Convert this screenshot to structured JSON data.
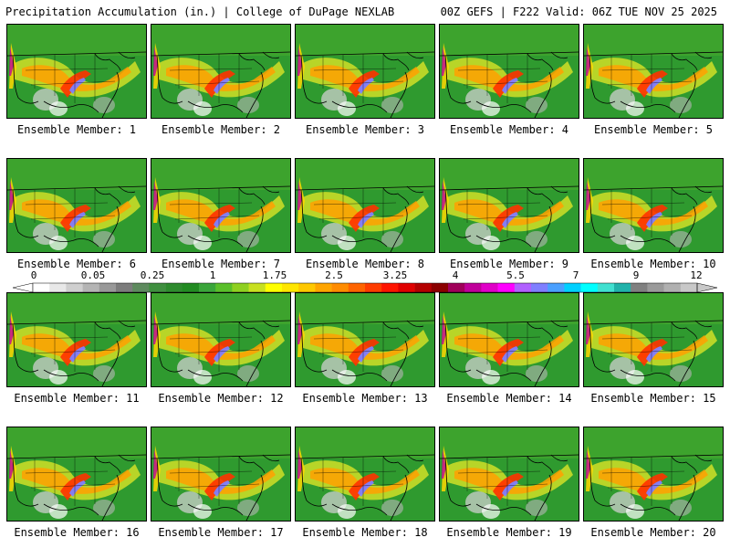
{
  "header": {
    "left": "Precipitation Accumulation (in.) | College of DuPage NEXLAB",
    "right": "00Z GEFS | F222 Valid: 06Z TUE NOV 25 2025"
  },
  "panels": [
    {
      "label": "Ensemble Member: 1"
    },
    {
      "label": "Ensemble Member: 2"
    },
    {
      "label": "Ensemble Member: 3"
    },
    {
      "label": "Ensemble Member: 4"
    },
    {
      "label": "Ensemble Member: 5"
    },
    {
      "label": "Ensemble Member: 6"
    },
    {
      "label": "Ensemble Member: 7"
    },
    {
      "label": "Ensemble Member: 8"
    },
    {
      "label": "Ensemble Member: 9"
    },
    {
      "label": "Ensemble Member: 10"
    },
    {
      "label": "Ensemble Member: 11"
    },
    {
      "label": "Ensemble Member: 12"
    },
    {
      "label": "Ensemble Member: 13"
    },
    {
      "label": "Ensemble Member: 14"
    },
    {
      "label": "Ensemble Member: 15"
    },
    {
      "label": "Ensemble Member: 16"
    },
    {
      "label": "Ensemble Member: 17"
    },
    {
      "label": "Ensemble Member: 18"
    },
    {
      "label": "Ensemble Member: 19"
    },
    {
      "label": "Ensemble Member: 20"
    }
  ],
  "colorbar": {
    "labels": [
      "0",
      "0.05",
      "0.25",
      "1",
      "1.75",
      "2.5",
      "3.25",
      "4",
      "5.5",
      "7",
      "9",
      "12"
    ],
    "colors": [
      "#ffffff",
      "#e8e8e8",
      "#cfcfcf",
      "#b4b4b4",
      "#989898",
      "#7c7c7c",
      "#5e8a5e",
      "#3f8f3f",
      "#2e8b2e",
      "#228b22",
      "#3aa53a",
      "#5abf2a",
      "#8fd020",
      "#c8e020",
      "#ffff00",
      "#ffe600",
      "#ffc800",
      "#ffa500",
      "#ff8c00",
      "#ff6400",
      "#ff3c00",
      "#ff1400",
      "#e00000",
      "#b40000",
      "#8b0000",
      "#a0005a",
      "#c0009a",
      "#e000c8",
      "#ff00ff",
      "#b060ff",
      "#7f7fff",
      "#4aa0ff",
      "#00d0ff",
      "#00ffff",
      "#40e0d0",
      "#20b2aa",
      "#808080",
      "#9a9a9a",
      "#b0b0b0",
      "#c8c8c8"
    ]
  }
}
